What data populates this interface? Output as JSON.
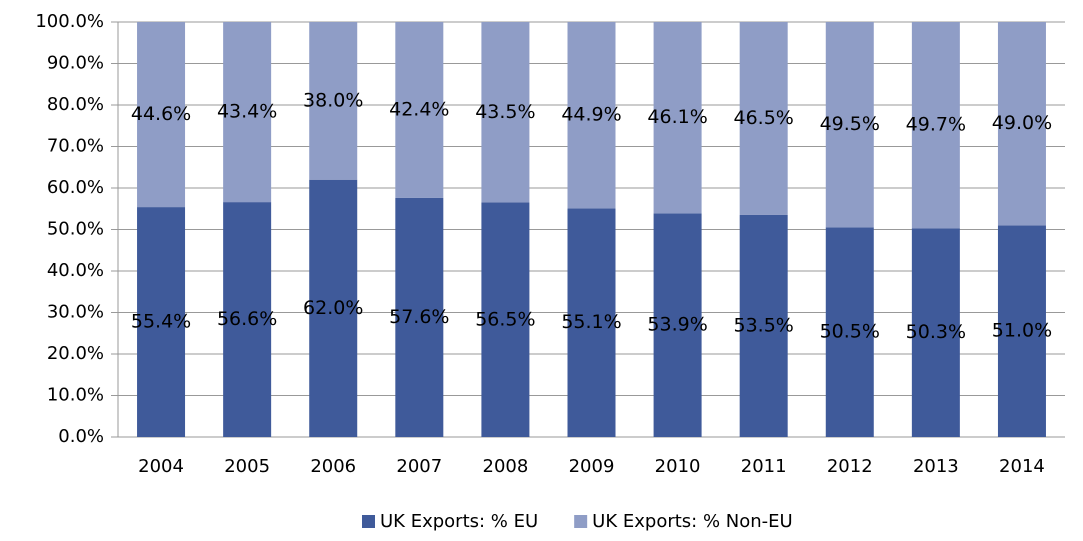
{
  "chart_data": {
    "type": "stacked_bar",
    "categories": [
      "2004",
      "2005",
      "2006",
      "2007",
      "2008",
      "2009",
      "2010",
      "2011",
      "2012",
      "2013",
      "2014"
    ],
    "series": [
      {
        "name": "UK Exports: % EU",
        "color": "#3f5a9a",
        "values": [
          55.4,
          56.6,
          62.0,
          57.6,
          56.5,
          55.1,
          53.9,
          53.5,
          50.5,
          50.3,
          51.0
        ],
        "value_labels": [
          "55.4%",
          "56.6%",
          "62.0%",
          "57.6%",
          "56.5%",
          "55.1%",
          "53.9%",
          "53.5%",
          "50.5%",
          "50.3%",
          "51.0%"
        ]
      },
      {
        "name": "UK Exports: % Non-EU",
        "color": "#8f9dc6",
        "values": [
          44.6,
          43.4,
          38.0,
          42.4,
          43.5,
          44.9,
          46.1,
          46.5,
          49.5,
          49.7,
          49.0
        ],
        "value_labels": [
          "44.6%",
          "43.4%",
          "38.0%",
          "42.4%",
          "43.5%",
          "44.9%",
          "46.1%",
          "46.5%",
          "49.5%",
          "49.7%",
          "49.0%"
        ]
      }
    ],
    "ylim": [
      0,
      100
    ],
    "yticks": [
      {
        "value": 0,
        "label": "0.0%"
      },
      {
        "value": 10,
        "label": "10.0%"
      },
      {
        "value": 20,
        "label": "20.0%"
      },
      {
        "value": 30,
        "label": "30.0%"
      },
      {
        "value": 40,
        "label": "40.0%"
      },
      {
        "value": 50,
        "label": "50.0%"
      },
      {
        "value": 60,
        "label": "60.0%"
      },
      {
        "value": 70,
        "label": "70.0%"
      },
      {
        "value": 80,
        "label": "80.0%"
      },
      {
        "value": 90,
        "label": "90.0%"
      },
      {
        "value": 100,
        "label": "100.0%"
      }
    ],
    "grid": true,
    "legend": "bottom"
  }
}
